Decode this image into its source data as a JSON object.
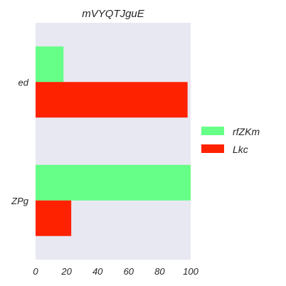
{
  "chart_data": {
    "type": "bar",
    "orientation": "horizontal",
    "title": "mVYQTJguE",
    "xlabel": "",
    "ylabel": "",
    "categories": [
      "ed",
      "ZPg"
    ],
    "series": [
      {
        "name": "rfZKm",
        "color": "#66ff88",
        "values": [
          18,
          100
        ]
      },
      {
        "name": "Lkc",
        "color": "#ff2200",
        "values": [
          98,
          23
        ]
      }
    ],
    "xlim": [
      0,
      100
    ],
    "xticks": [
      0,
      20,
      40,
      60,
      80,
      100
    ],
    "grid": false,
    "legend_position": "right",
    "background": "#e8e8f2"
  }
}
